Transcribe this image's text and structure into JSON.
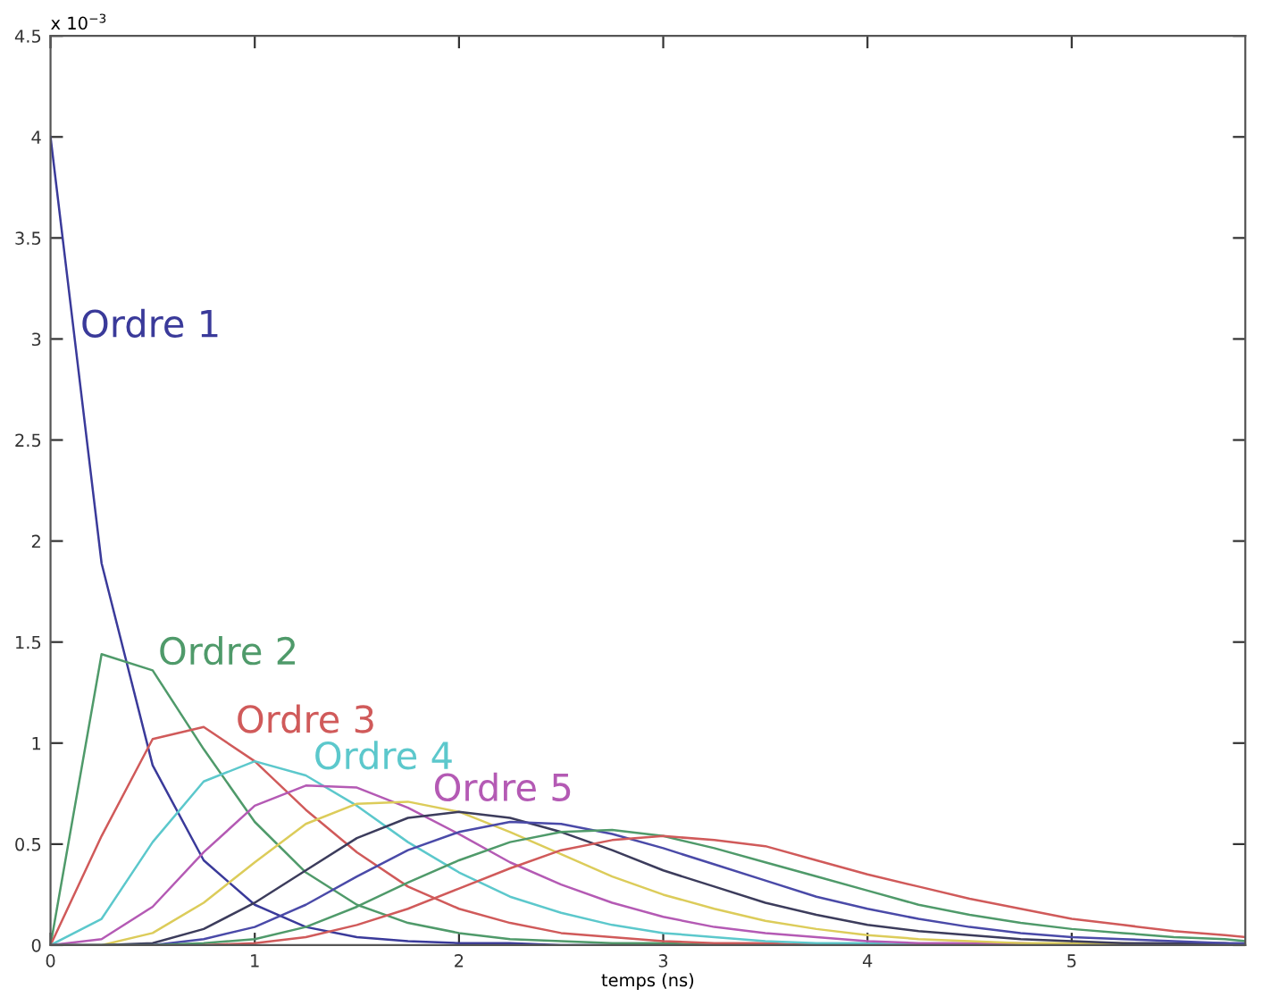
{
  "chart_data": {
    "type": "line",
    "xlabel": "temps (ns)",
    "annotations": [
      "x 10$^{−3}$"
    ],
    "x": [
      0,
      0.25,
      0.5,
      0.75,
      1,
      1.25,
      1.5,
      1.75,
      2,
      2.25,
      2.5,
      2.75,
      3,
      3.25,
      3.5,
      3.75,
      4,
      4.25,
      4.5,
      4.75,
      5,
      5.25,
      5.5,
      5.75,
      5.85
    ],
    "series": [
      {
        "name": "Ordre 1",
        "color": "#3a3a9a",
        "values": [
          4,
          1.89,
          0.89,
          0.42,
          0.2,
          0.09,
          0.04,
          0.02,
          0.01,
          0.01,
          0,
          0,
          0,
          0,
          0,
          0,
          0,
          0,
          0,
          0,
          0,
          0,
          0,
          0,
          0
        ]
      },
      {
        "name": "Ordre 2",
        "color": "#4f9a6a",
        "values": [
          0,
          1.44,
          1.36,
          0.97,
          0.61,
          0.36,
          0.2,
          0.11,
          0.06,
          0.03,
          0.02,
          0.01,
          0.01,
          0,
          0,
          0,
          0,
          0,
          0,
          0,
          0,
          0,
          0,
          0,
          0
        ]
      },
      {
        "name": "Ordre 3",
        "color": "#d05a5a",
        "values": [
          0,
          0.54,
          1.02,
          1.08,
          0.91,
          0.67,
          0.46,
          0.29,
          0.18,
          0.11,
          0.06,
          0.04,
          0.02,
          0.01,
          0.01,
          0,
          0,
          0,
          0,
          0,
          0,
          null,
          null,
          null,
          null
        ]
      },
      {
        "name": "Ordre 4",
        "color": "#5cc8cc",
        "values": [
          0,
          0.13,
          0.51,
          0.81,
          0.91,
          0.84,
          0.69,
          0.51,
          0.36,
          0.24,
          0.16,
          0.1,
          0.06,
          0.04,
          0.02,
          0.01,
          0.01,
          0,
          0,
          null,
          null,
          null,
          null,
          null,
          null
        ]
      },
      {
        "name": "Ordre 5",
        "color": "#b45ab4",
        "values": [
          0,
          0.03,
          0.19,
          0.46,
          0.69,
          0.79,
          0.78,
          0.68,
          0.55,
          0.41,
          0.3,
          0.21,
          0.14,
          0.09,
          0.06,
          0.04,
          0.02,
          0.01,
          0.01,
          0.01,
          0,
          0,
          0,
          0,
          0
        ]
      },
      {
        "color": "#dccc5a",
        "values": [
          0,
          0,
          0.06,
          0.21,
          0.41,
          0.6,
          0.7,
          0.71,
          0.66,
          0.56,
          0.45,
          0.34,
          0.25,
          0.18,
          0.12,
          0.08,
          0.05,
          0.03,
          0.02,
          0.01,
          0.01,
          0.01,
          0,
          null,
          null
        ]
      },
      {
        "color": "#3c3c5c",
        "values": [
          0,
          0,
          0.01,
          0.08,
          0.21,
          0.37,
          0.53,
          0.63,
          0.66,
          0.63,
          0.56,
          0.47,
          0.37,
          0.29,
          0.21,
          0.15,
          0.1,
          0.07,
          0.05,
          0.03,
          0.02,
          0.01,
          0.01,
          0.01,
          0
        ]
      },
      {
        "color": "#4a4aa8",
        "values": [
          0,
          0,
          0,
          0.03,
          0.09,
          0.2,
          0.34,
          0.47,
          0.56,
          0.61,
          0.6,
          0.55,
          0.48,
          0.4,
          0.32,
          0.24,
          0.18,
          0.13,
          0.09,
          0.06,
          0.04,
          0.03,
          0.02,
          0.01,
          0.01
        ]
      },
      {
        "color": "#4f9a6a",
        "values": [
          0,
          0,
          0,
          0.01,
          0.03,
          0.09,
          0.19,
          0.31,
          0.42,
          0.51,
          0.56,
          0.57,
          0.54,
          0.48,
          0.41,
          0.34,
          0.27,
          0.2,
          0.15,
          0.11,
          0.08,
          0.06,
          0.04,
          0.03,
          0.02
        ]
      },
      {
        "color": "#d05a5a",
        "values": [
          null,
          null,
          null,
          0,
          0.01,
          0.04,
          0.1,
          0.18,
          0.28,
          0.38,
          0.47,
          0.52,
          0.54,
          0.52,
          0.49,
          0.42,
          0.35,
          0.29,
          0.23,
          0.18,
          0.13,
          0.1,
          0.07,
          0.05,
          0.04
        ]
      }
    ],
    "xlim": [
      0,
      5.85
    ],
    "xticks": [
      0,
      1,
      2,
      3,
      4,
      5
    ],
    "ylim": [
      0,
      4.5
    ],
    "yticks": [
      0,
      0.5,
      1,
      1.5,
      2,
      2.5,
      3,
      3.5,
      4,
      4.5
    ],
    "grid": false,
    "legend": false,
    "marker": "none",
    "line_style": "solid"
  }
}
